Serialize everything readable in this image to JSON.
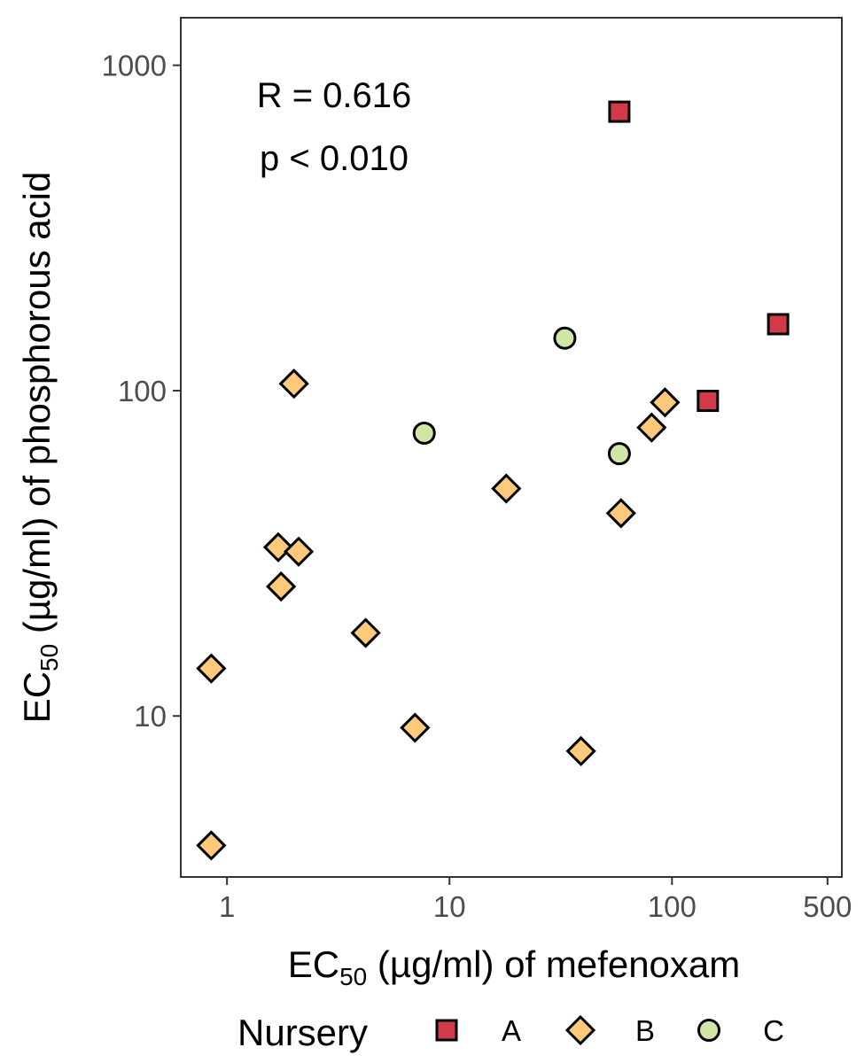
{
  "chart_data": {
    "type": "scatter",
    "x_scale": "log",
    "y_scale": "log",
    "xlim": [
      0.62,
      580
    ],
    "ylim": [
      3.2,
      1400
    ],
    "x_ticks": [
      1,
      10,
      100,
      500
    ],
    "x_tick_labels": [
      "1",
      "10",
      "100",
      "500"
    ],
    "y_ticks": [
      10,
      100,
      1000
    ],
    "y_tick_labels": [
      "10",
      "100",
      "1000"
    ],
    "xlabel": {
      "prefix": "EC",
      "sub": "50",
      "suffix": " (µg/ml) of mefenoxam"
    },
    "ylabel": {
      "prefix": "EC",
      "sub": "50",
      "suffix": " (µg/ml) of phosphorous acid"
    },
    "annotations": [
      "R = 0.616",
      "p < 0.010"
    ],
    "grid": false,
    "legend": {
      "title": "Nursery",
      "position": "bottom",
      "entries": [
        {
          "label": "A",
          "shape": "square",
          "color": "#d23a4a"
        },
        {
          "label": "B",
          "shape": "diamond",
          "color": "#fdc97a"
        },
        {
          "label": "C",
          "shape": "circle",
          "color": "#cfe6a6"
        }
      ]
    },
    "series": [
      {
        "name": "A",
        "shape": "square",
        "color": "#d23a4a",
        "points": [
          [
            58,
            720
          ],
          [
            145,
            93
          ],
          [
            300,
            160
          ]
        ]
      },
      {
        "name": "B",
        "shape": "diamond",
        "color": "#fdc97a",
        "points": [
          [
            0.85,
            14
          ],
          [
            0.85,
            4
          ],
          [
            1.7,
            33
          ],
          [
            1.75,
            25
          ],
          [
            2.0,
            105
          ],
          [
            2.1,
            32
          ],
          [
            4.2,
            18
          ],
          [
            7,
            9.2
          ],
          [
            18,
            50
          ],
          [
            39,
            7.8
          ],
          [
            59,
            42
          ],
          [
            81,
            77
          ],
          [
            93,
            92
          ]
        ]
      },
      {
        "name": "C",
        "shape": "circle",
        "color": "#cfe6a6",
        "points": [
          [
            7.7,
            74
          ],
          [
            33,
            145
          ],
          [
            58,
            64
          ]
        ]
      }
    ]
  }
}
